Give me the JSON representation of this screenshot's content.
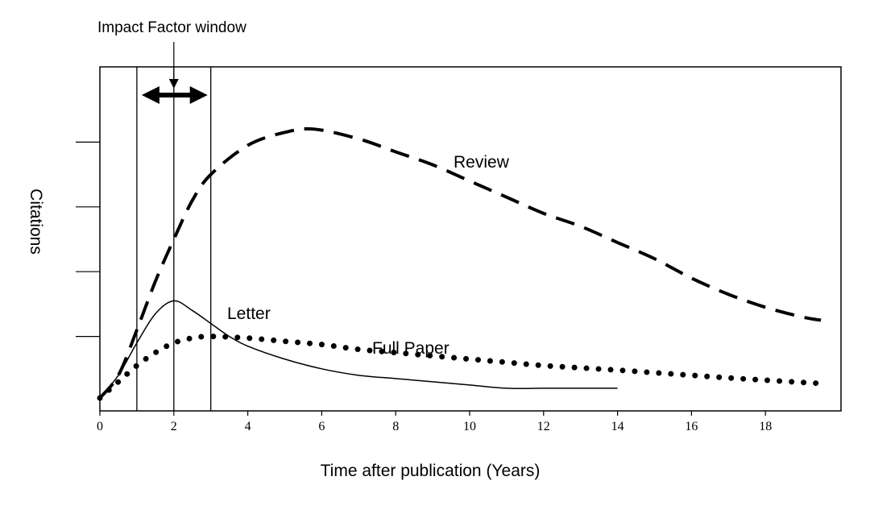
{
  "chart_data": {
    "type": "line",
    "title": "",
    "xlabel": "Time after publication (Years)",
    "ylabel": "Citations",
    "x_ticks": [
      0,
      2,
      4,
      6,
      8,
      10,
      12,
      14,
      16,
      18
    ],
    "x_tick_labels": [
      "0",
      "2",
      "4",
      "6",
      "8",
      "10",
      "12",
      "14",
      "16",
      "18"
    ],
    "xlim": [
      0,
      20
    ],
    "ylim": [
      0,
      100
    ],
    "y_ticks": [
      20,
      40,
      60,
      80
    ],
    "grid": false,
    "legend": "none",
    "series": [
      {
        "name": "Review",
        "style": "dashed",
        "x": [
          0,
          0.5,
          1,
          1.5,
          2,
          2.5,
          3,
          4,
          5,
          5.8,
          7,
          8,
          9,
          10,
          11,
          12,
          13,
          14,
          15,
          16,
          17,
          18,
          19,
          19.5
        ],
        "y": [
          1,
          8,
          22,
          37,
          50,
          62,
          70,
          79,
          83,
          84,
          81,
          77,
          73,
          68,
          63,
          58,
          54,
          49,
          44,
          38,
          33,
          29,
          26,
          25
        ]
      },
      {
        "name": "Letter",
        "style": "solid",
        "x": [
          0,
          0.5,
          1,
          1.5,
          2,
          2.5,
          3,
          3.5,
          4,
          5,
          6,
          7,
          8,
          9,
          10,
          11,
          12,
          13,
          14
        ],
        "y": [
          1,
          8,
          18,
          27,
          31,
          28,
          24,
          20,
          17,
          13,
          10,
          8,
          7,
          6,
          5,
          4,
          4,
          4,
          4
        ]
      },
      {
        "name": "Full Paper",
        "style": "dotted",
        "x": [
          0,
          0.5,
          1,
          1.5,
          2,
          2.5,
          3,
          4,
          5,
          6,
          7,
          8,
          9,
          10,
          11,
          12,
          13,
          14,
          15,
          16,
          17,
          18,
          19,
          19.5
        ],
        "y": [
          1,
          6,
          11,
          15,
          18,
          19.5,
          20,
          19.5,
          18.5,
          17.5,
          16,
          15,
          14,
          13,
          12,
          11,
          10.3,
          9.6,
          8.8,
          8,
          7.2,
          6.5,
          5.8,
          5.5
        ]
      }
    ],
    "annotations": {
      "window_label": "Impact Factor window",
      "window_lines_x": [
        1,
        2,
        3
      ],
      "window_arrow_x": [
        1,
        3
      ],
      "pointer_x": 2
    }
  }
}
